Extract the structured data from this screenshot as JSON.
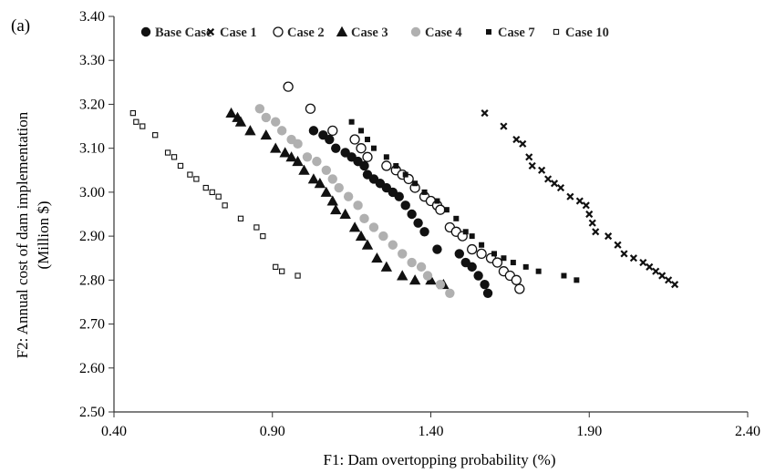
{
  "panel_label": "(a)",
  "colors": {
    "dark": "#111111",
    "gray": "#b0b0b0",
    "axis": "#333333"
  },
  "chart_data": {
    "type": "scatter",
    "title": "",
    "xlabel": "F1: Dam overtopping  probability  (%)",
    "ylabel_line1": "F2: Annual cost of dam implementation",
    "ylabel_line2": "(Million  $)",
    "xlim": [
      0.4,
      2.4
    ],
    "ylim": [
      2.5,
      3.4
    ],
    "x_ticks": [
      "0.40",
      "0.90",
      "1.40",
      "1.90",
      "2.40"
    ],
    "y_ticks": [
      "2.50",
      "2.60",
      "2.70",
      "2.80",
      "2.90",
      "3.00",
      "3.10",
      "3.20",
      "3.30",
      "3.40"
    ],
    "grid": false,
    "legend_position": "top",
    "series": [
      {
        "name": "Base Case",
        "marker": "filled-circle",
        "color": "#111111",
        "points": [
          [
            1.03,
            3.14
          ],
          [
            1.06,
            3.13
          ],
          [
            1.08,
            3.12
          ],
          [
            1.1,
            3.1
          ],
          [
            1.13,
            3.09
          ],
          [
            1.15,
            3.08
          ],
          [
            1.17,
            3.07
          ],
          [
            1.19,
            3.06
          ],
          [
            1.2,
            3.04
          ],
          [
            1.22,
            3.03
          ],
          [
            1.24,
            3.02
          ],
          [
            1.26,
            3.01
          ],
          [
            1.28,
            3.0
          ],
          [
            1.3,
            2.99
          ],
          [
            1.32,
            2.97
          ],
          [
            1.34,
            2.95
          ],
          [
            1.36,
            2.93
          ],
          [
            1.38,
            2.91
          ],
          [
            1.42,
            2.87
          ],
          [
            1.49,
            2.86
          ],
          [
            1.51,
            2.84
          ],
          [
            1.53,
            2.83
          ],
          [
            1.55,
            2.81
          ],
          [
            1.57,
            2.79
          ],
          [
            1.58,
            2.77
          ]
        ]
      },
      {
        "name": "Case 1",
        "marker": "x",
        "color": "#111111",
        "points": [
          [
            1.57,
            3.18
          ],
          [
            1.63,
            3.15
          ],
          [
            1.67,
            3.12
          ],
          [
            1.69,
            3.11
          ],
          [
            1.71,
            3.08
          ],
          [
            1.72,
            3.06
          ],
          [
            1.75,
            3.05
          ],
          [
            1.77,
            3.03
          ],
          [
            1.79,
            3.02
          ],
          [
            1.81,
            3.01
          ],
          [
            1.84,
            2.99
          ],
          [
            1.87,
            2.98
          ],
          [
            1.89,
            2.97
          ],
          [
            1.9,
            2.95
          ],
          [
            1.91,
            2.93
          ],
          [
            1.92,
            2.91
          ],
          [
            1.96,
            2.9
          ],
          [
            1.99,
            2.88
          ],
          [
            2.01,
            2.86
          ],
          [
            2.04,
            2.85
          ],
          [
            2.07,
            2.84
          ],
          [
            2.09,
            2.83
          ],
          [
            2.11,
            2.82
          ],
          [
            2.13,
            2.81
          ],
          [
            2.15,
            2.8
          ],
          [
            2.17,
            2.79
          ]
        ]
      },
      {
        "name": "Case 2",
        "marker": "open-circle",
        "color": "#111111",
        "points": [
          [
            0.95,
            3.24
          ],
          [
            1.02,
            3.19
          ],
          [
            1.09,
            3.14
          ],
          [
            1.16,
            3.12
          ],
          [
            1.18,
            3.1
          ],
          [
            1.2,
            3.08
          ],
          [
            1.26,
            3.06
          ],
          [
            1.29,
            3.05
          ],
          [
            1.31,
            3.04
          ],
          [
            1.33,
            3.03
          ],
          [
            1.35,
            3.01
          ],
          [
            1.38,
            2.99
          ],
          [
            1.4,
            2.98
          ],
          [
            1.42,
            2.97
          ],
          [
            1.43,
            2.96
          ],
          [
            1.46,
            2.92
          ],
          [
            1.48,
            2.91
          ],
          [
            1.5,
            2.9
          ],
          [
            1.53,
            2.87
          ],
          [
            1.56,
            2.86
          ],
          [
            1.59,
            2.85
          ],
          [
            1.61,
            2.84
          ],
          [
            1.63,
            2.82
          ],
          [
            1.65,
            2.81
          ],
          [
            1.67,
            2.8
          ],
          [
            1.68,
            2.78
          ]
        ]
      },
      {
        "name": "Case 3",
        "marker": "filled-triangle",
        "color": "#111111",
        "points": [
          [
            0.77,
            3.18
          ],
          [
            0.79,
            3.17
          ],
          [
            0.8,
            3.16
          ],
          [
            0.83,
            3.14
          ],
          [
            0.88,
            3.13
          ],
          [
            0.91,
            3.1
          ],
          [
            0.94,
            3.09
          ],
          [
            0.96,
            3.08
          ],
          [
            0.98,
            3.07
          ],
          [
            1.0,
            3.05
          ],
          [
            1.03,
            3.03
          ],
          [
            1.05,
            3.02
          ],
          [
            1.07,
            3.0
          ],
          [
            1.09,
            2.98
          ],
          [
            1.1,
            2.96
          ],
          [
            1.13,
            2.95
          ],
          [
            1.16,
            2.92
          ],
          [
            1.18,
            2.9
          ],
          [
            1.2,
            2.88
          ],
          [
            1.23,
            2.85
          ],
          [
            1.26,
            2.83
          ],
          [
            1.31,
            2.81
          ],
          [
            1.35,
            2.8
          ],
          [
            1.4,
            2.8
          ],
          [
            1.44,
            2.79
          ]
        ]
      },
      {
        "name": "Case 4",
        "marker": "filled-circle",
        "color": "#b0b0b0",
        "points": [
          [
            0.86,
            3.19
          ],
          [
            0.88,
            3.17
          ],
          [
            0.91,
            3.16
          ],
          [
            0.93,
            3.14
          ],
          [
            0.96,
            3.12
          ],
          [
            0.98,
            3.11
          ],
          [
            1.01,
            3.08
          ],
          [
            1.04,
            3.07
          ],
          [
            1.07,
            3.05
          ],
          [
            1.09,
            3.03
          ],
          [
            1.11,
            3.01
          ],
          [
            1.14,
            2.99
          ],
          [
            1.17,
            2.97
          ],
          [
            1.19,
            2.94
          ],
          [
            1.22,
            2.92
          ],
          [
            1.25,
            2.9
          ],
          [
            1.28,
            2.88
          ],
          [
            1.31,
            2.86
          ],
          [
            1.34,
            2.84
          ],
          [
            1.37,
            2.83
          ],
          [
            1.39,
            2.81
          ],
          [
            1.43,
            2.79
          ],
          [
            1.46,
            2.77
          ]
        ]
      },
      {
        "name": "Case 7",
        "marker": "filled-square",
        "color": "#111111",
        "points": [
          [
            1.15,
            3.16
          ],
          [
            1.18,
            3.14
          ],
          [
            1.2,
            3.12
          ],
          [
            1.22,
            3.1
          ],
          [
            1.26,
            3.08
          ],
          [
            1.29,
            3.06
          ],
          [
            1.32,
            3.04
          ],
          [
            1.35,
            3.02
          ],
          [
            1.38,
            3.0
          ],
          [
            1.42,
            2.98
          ],
          [
            1.45,
            2.96
          ],
          [
            1.48,
            2.94
          ],
          [
            1.51,
            2.91
          ],
          [
            1.53,
            2.9
          ],
          [
            1.56,
            2.88
          ],
          [
            1.6,
            2.86
          ],
          [
            1.63,
            2.85
          ],
          [
            1.66,
            2.84
          ],
          [
            1.7,
            2.83
          ],
          [
            1.74,
            2.82
          ],
          [
            1.82,
            2.81
          ],
          [
            1.86,
            2.8
          ]
        ]
      },
      {
        "name": "Case 10",
        "marker": "open-square",
        "color": "#111111",
        "points": [
          [
            0.46,
            3.18
          ],
          [
            0.47,
            3.16
          ],
          [
            0.49,
            3.15
          ],
          [
            0.53,
            3.13
          ],
          [
            0.57,
            3.09
          ],
          [
            0.59,
            3.08
          ],
          [
            0.61,
            3.06
          ],
          [
            0.64,
            3.04
          ],
          [
            0.66,
            3.03
          ],
          [
            0.69,
            3.01
          ],
          [
            0.71,
            3.0
          ],
          [
            0.73,
            2.99
          ],
          [
            0.75,
            2.97
          ],
          [
            0.8,
            2.94
          ],
          [
            0.85,
            2.92
          ],
          [
            0.87,
            2.9
          ],
          [
            0.91,
            2.83
          ],
          [
            0.93,
            2.82
          ],
          [
            0.98,
            2.81
          ]
        ]
      }
    ]
  }
}
